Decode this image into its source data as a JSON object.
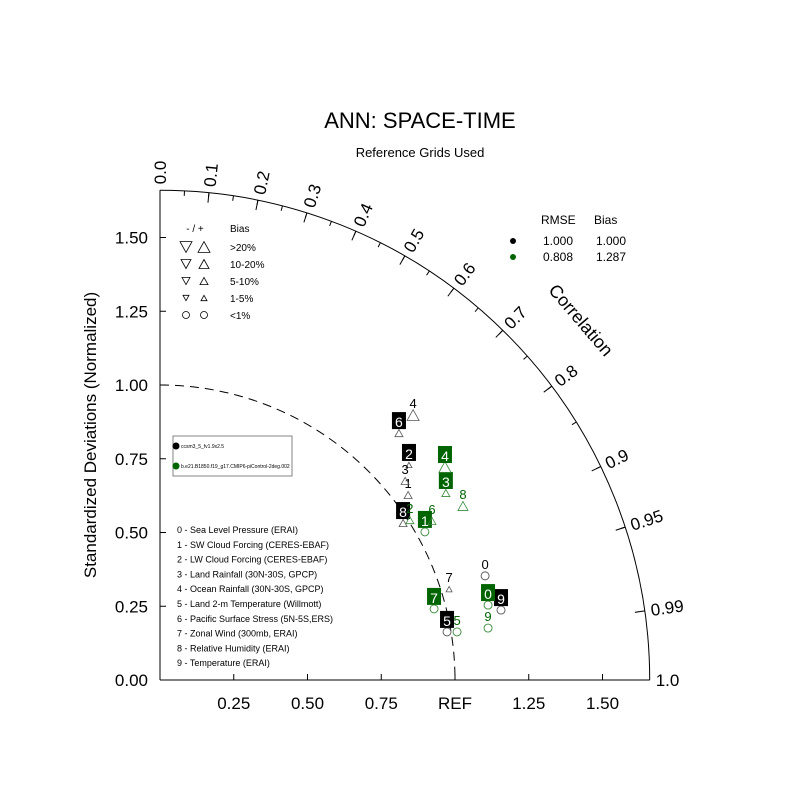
{
  "chart_data": {
    "type": "scatter",
    "subtype": "taylor-diagram",
    "title": "ANN: SPACE-TIME",
    "subtitle": "Reference Grids Used",
    "ylabel": "Standardized Deviations (Normalized)",
    "arc_label": "Correlation",
    "std_max": 1.66,
    "x_ticks": [
      {
        "v": 0.25,
        "label": "0.25"
      },
      {
        "v": 0.5,
        "label": "0.50"
      },
      {
        "v": 0.75,
        "label": "0.75"
      },
      {
        "v": 1.0,
        "label": "REF"
      },
      {
        "v": 1.25,
        "label": "1.25"
      },
      {
        "v": 1.5,
        "label": "1.50"
      }
    ],
    "y_ticks": [
      {
        "v": 0,
        "label": "0.00"
      },
      {
        "v": 0.25,
        "label": "0.25"
      },
      {
        "v": 0.5,
        "label": "0.50"
      },
      {
        "v": 0.75,
        "label": "0.75"
      },
      {
        "v": 1.0,
        "label": "1.00"
      },
      {
        "v": 1.25,
        "label": "1.25"
      },
      {
        "v": 1.5,
        "label": "1.50"
      }
    ],
    "corr_ticks": [
      {
        "v": 0.0,
        "label": "0.0"
      },
      {
        "v": 0.1,
        "label": "0.1"
      },
      {
        "v": 0.2,
        "label": "0.2"
      },
      {
        "v": 0.3,
        "label": "0.3"
      },
      {
        "v": 0.4,
        "label": "0.4"
      },
      {
        "v": 0.5,
        "label": "0.5"
      },
      {
        "v": 0.6,
        "label": "0.6"
      },
      {
        "v": 0.7,
        "label": "0.7"
      },
      {
        "v": 0.8,
        "label": "0.8"
      },
      {
        "v": 0.9,
        "label": "0.9"
      },
      {
        "v": 0.95,
        "label": "0.95"
      },
      {
        "v": 0.99,
        "label": "0.99"
      },
      {
        "v": 1.0,
        "label": "1.0"
      }
    ],
    "ref_arc_std": 1.0,
    "bias_legend": {
      "header_sign": "- / +",
      "header": "Bias",
      "rows": [
        ">20%",
        "10-20%",
        "5-10%",
        "1-5%",
        "<1%"
      ]
    },
    "stats_legend": {
      "headers": [
        "RMSE",
        "Bias"
      ],
      "rows": [
        {
          "color": "#000000",
          "rmse": "1.000",
          "bias": "1.000"
        },
        {
          "color": "#006400",
          "rmse": "0.808",
          "bias": "1.287"
        }
      ]
    },
    "cases_legend": [
      "ccsm3_5_fv1.9x2.5",
      "b.e21.B1850.f19_g17.CMIP6-piControl-2deg.002"
    ],
    "variables": [
      "0 - Sea Level Pressure (ERAI)",
      "1 - SW Cloud Forcing (CERES-EBAF)",
      "2 - LW Cloud Forcing (CERES-EBAF)",
      "3 - Land Rainfall (30N-30S, GPCP)",
      "4 - Ocean Rainfall (30N-30S, GPCP)",
      "5 - Land 2-m Temperature (Willmott)",
      "6 - Pacific Surface Stress (5N-5S,ERS)",
      "7 - Zonal Wind (300mb, ERAI)",
      "8 - Relative Humidity (ERAI)",
      "9 - Temperature (ERAI)"
    ],
    "series": [
      {
        "name": "ccsm3_5_fv1.9x2.5",
        "color": "#000000",
        "points": [
          {
            "id": "0",
            "x": 1.102,
            "y": 0.353,
            "bias": "<1%",
            "boxed": false
          },
          {
            "id": "1",
            "x": 0.841,
            "y": 0.627,
            "bias": "5-10%",
            "boxed": false
          },
          {
            "id": "2",
            "x": 0.844,
            "y": 0.729,
            "bias": "1-5%",
            "boxed": true
          },
          {
            "id": "3",
            "x": 0.831,
            "y": 0.675,
            "bias": "5-10%",
            "boxed": false
          },
          {
            "id": "4",
            "x": 0.858,
            "y": 0.898,
            "bias": ">20%",
            "boxed": false
          },
          {
            "id": "5",
            "x": 0.973,
            "y": 0.163,
            "bias": "<1%",
            "boxed": true
          },
          {
            "id": "6",
            "x": 0.81,
            "y": 0.837,
            "bias": "5-10%",
            "boxed": true
          },
          {
            "id": "7",
            "x": 0.98,
            "y": 0.308,
            "bias": "1-5%",
            "boxed": false
          },
          {
            "id": "8",
            "x": 0.824,
            "y": 0.532,
            "bias": "5-10%",
            "boxed": true
          },
          {
            "id": "9",
            "x": 1.156,
            "y": 0.237,
            "bias": "<1%",
            "boxed": true
          }
        ]
      },
      {
        "name": "b.e21.B1850.f19_g17.CMIP6-piControl-2deg.002",
        "color": "#006400",
        "points": [
          {
            "id": "0",
            "x": 1.112,
            "y": 0.254,
            "bias": "<1%",
            "boxed": true
          },
          {
            "id": "1",
            "x": 0.898,
            "y": 0.502,
            "bias": "<1%",
            "boxed": true
          },
          {
            "id": "2",
            "x": 0.847,
            "y": 0.542,
            "bias": "5-10%",
            "boxed": false
          },
          {
            "id": "3",
            "x": 0.969,
            "y": 0.634,
            "bias": "5-10%",
            "boxed": true
          },
          {
            "id": "4",
            "x": 0.966,
            "y": 0.722,
            "bias": ">20%",
            "boxed": true
          },
          {
            "id": "5",
            "x": 1.007,
            "y": 0.163,
            "bias": "<1%",
            "boxed": false
          },
          {
            "id": "6",
            "x": 0.922,
            "y": 0.539,
            "bias": "5-10%",
            "boxed": false
          },
          {
            "id": "7",
            "x": 0.929,
            "y": 0.241,
            "bias": "<1%",
            "boxed": true
          },
          {
            "id": "8",
            "x": 1.027,
            "y": 0.59,
            "bias": "10-20%",
            "boxed": false
          },
          {
            "id": "9",
            "x": 1.112,
            "y": 0.176,
            "bias": "<1%",
            "boxed": false
          }
        ]
      }
    ]
  }
}
